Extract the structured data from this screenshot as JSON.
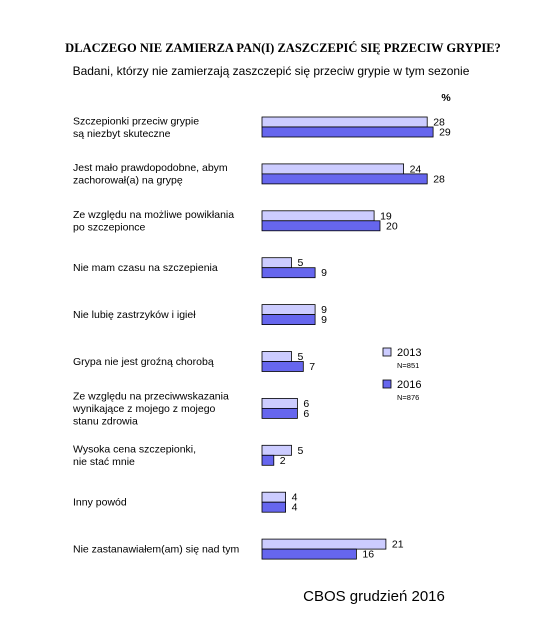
{
  "chart_data": {
    "type": "bar",
    "orientation": "horizontal",
    "title": "DLACZEGO NIE ZAMIERZA PAN(I) ZASZCZEPIĆ SIĘ PRZECIW GRYPIE?",
    "subtitle": "Badani, którzy nie zamierzają zaszczepić się przeciw grypie w tym sezonie",
    "unit": "%",
    "categories": [
      [
        "Szczepionki przeciw grypie",
        "są niezbyt skuteczne"
      ],
      [
        "Jest mało prawdopodobne, abym",
        "zachorował(a) na grypę"
      ],
      [
        "Ze względu na możliwe powikłania",
        "po szczepionce"
      ],
      [
        "Nie mam czasu na szczepienia"
      ],
      [
        "Nie lubię zastrzyków i igieł"
      ],
      [
        "Grypa nie jest groźną chorobą"
      ],
      [
        "Ze względu na przeciwwskazania",
        "wynikające z mojego z mojego",
        "stanu zdrowia"
      ],
      [
        "Wysoka cena szczepionki,",
        "nie stać mnie"
      ],
      [
        "Inny powód"
      ],
      [
        "Nie zastanawiałem(am) się nad tym"
      ]
    ],
    "series": [
      {
        "name": "2013",
        "n": "N=851",
        "color": "#ccccff",
        "values": [
          28,
          24,
          19,
          5,
          9,
          5,
          6,
          5,
          4,
          21
        ]
      },
      {
        "name": "2016",
        "n": "N=876",
        "color": "#6666ee",
        "values": [
          29,
          28,
          20,
          9,
          9,
          7,
          6,
          2,
          4,
          16
        ]
      }
    ],
    "legend_position": "right",
    "grid": false
  },
  "source": "CBOS grudzień 2016"
}
